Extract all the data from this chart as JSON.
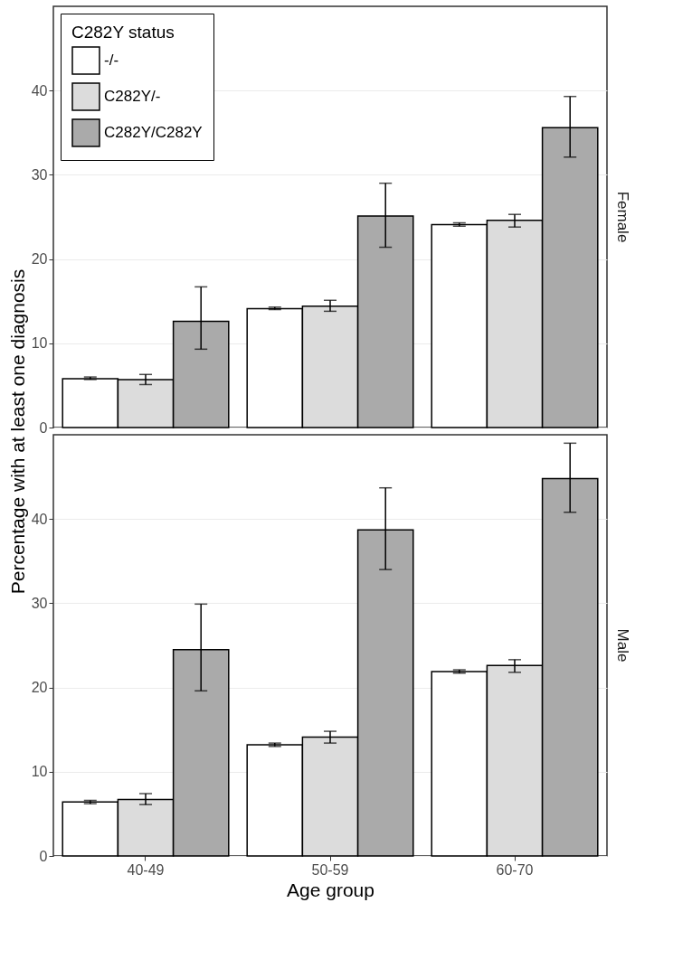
{
  "chart_data": [
    {
      "type": "bar",
      "title": "Female",
      "ylabel": "Percentage with at least one diagnosis",
      "legend_title": "C282Y status",
      "categories": [
        null,
        null,
        null
      ],
      "series": [
        {
          "name": "-/-",
          "color": "#ffffff",
          "values": [
            5.8,
            14.1,
            24.1
          ],
          "errors": [
            [
              5.7,
              6.0
            ],
            [
              14.0,
              14.3
            ],
            [
              23.9,
              24.3
            ]
          ]
        },
        {
          "name": "C282Y/-",
          "color": "#dcdcdc",
          "values": [
            5.7,
            14.4,
            24.6
          ],
          "errors": [
            [
              5.1,
              6.3
            ],
            [
              13.8,
              15.1
            ],
            [
              23.8,
              25.3
            ]
          ]
        },
        {
          "name": "C282Y/C282Y",
          "color": "#aaaaaa",
          "values": [
            12.6,
            25.1,
            35.6
          ],
          "errors": [
            [
              9.3,
              16.7
            ],
            [
              21.4,
              29.0
            ],
            [
              32.1,
              39.3
            ]
          ]
        }
      ],
      "ylim": [
        0,
        50
      ],
      "yticks": [
        0,
        10,
        20,
        30,
        40
      ],
      "grid": "y",
      "legend": "top left",
      "tick_labels": "y"
    },
    {
      "type": "bar",
      "title": "Male",
      "xlabel": "Age group",
      "categories": [
        "40-49",
        "50-59",
        "60-70"
      ],
      "series": [
        {
          "color": "#ffffff",
          "values": [
            6.4,
            13.2,
            21.9
          ],
          "errors": [
            [
              6.2,
              6.6
            ],
            [
              13.0,
              13.4
            ],
            [
              21.7,
              22.1
            ]
          ]
        },
        {
          "color": "#dcdcdc",
          "values": [
            6.7,
            14.1,
            22.6
          ],
          "errors": [
            [
              6.1,
              7.4
            ],
            [
              13.4,
              14.8
            ],
            [
              21.8,
              23.3
            ]
          ]
        },
        {
          "color": "#aaaaaa",
          "values": [
            24.5,
            38.7,
            44.8
          ],
          "errors": [
            [
              19.6,
              29.9
            ],
            [
              34.0,
              43.7
            ],
            [
              40.8,
              49.0
            ]
          ]
        }
      ],
      "ylim": [
        0,
        50
      ],
      "yticks": [
        0,
        10,
        20,
        30,
        40
      ],
      "grid": "y",
      "legend": false
    }
  ]
}
